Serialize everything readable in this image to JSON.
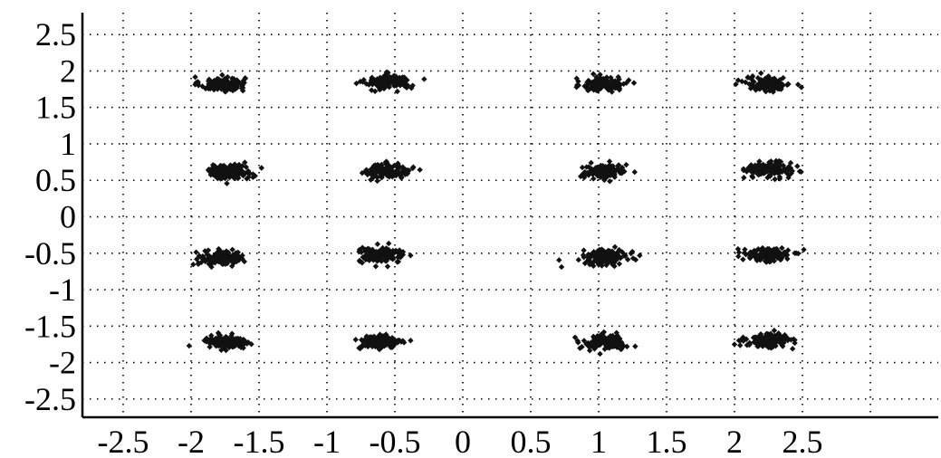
{
  "chart_data": {
    "type": "scatter",
    "title": "",
    "xlabel": "",
    "ylabel": "",
    "xlim": [
      -2.8,
      3.5
    ],
    "ylim": [
      -2.75,
      2.8
    ],
    "grid": true,
    "x_ticks": [
      -2.5,
      -2,
      -1.5,
      -1,
      -0.5,
      0,
      0.5,
      1,
      1.5,
      2,
      2.5
    ],
    "x_tick_labels": [
      "-2.5",
      "-2",
      "-1.5",
      "-1",
      "-0.5",
      "0",
      "0.5",
      "1",
      "1.5",
      "2",
      "2.5"
    ],
    "y_ticks": [
      2.5,
      2,
      1.5,
      1,
      0.5,
      0,
      -0.5,
      -1,
      -1.5,
      -2,
      -2.5
    ],
    "y_tick_labels": [
      "2.5",
      "2",
      "1.5",
      "1",
      "0.5",
      "0",
      "-0.5",
      "-1",
      "-1.5",
      "-2",
      "-2.5"
    ],
    "points_per_cluster": 140,
    "cluster_spread": [
      0.15,
      0.09
    ],
    "marker_color": "#111111",
    "clusters": [
      {
        "x": -1.77,
        "y": 1.82
      },
      {
        "x": -0.55,
        "y": 1.85
      },
      {
        "x": 1.05,
        "y": 1.82
      },
      {
        "x": 2.25,
        "y": 1.82
      },
      {
        "x": -1.72,
        "y": 0.62
      },
      {
        "x": -0.55,
        "y": 0.63
      },
      {
        "x": 1.05,
        "y": 0.62
      },
      {
        "x": 2.25,
        "y": 0.65
      },
      {
        "x": -1.78,
        "y": -0.57
      },
      {
        "x": -0.6,
        "y": -0.53
      },
      {
        "x": 1.05,
        "y": -0.55
      },
      {
        "x": 2.25,
        "y": -0.52
      },
      {
        "x": -1.75,
        "y": -1.72
      },
      {
        "x": -0.6,
        "y": -1.72
      },
      {
        "x": 1.05,
        "y": -1.72
      },
      {
        "x": 2.25,
        "y": -1.7
      }
    ]
  }
}
